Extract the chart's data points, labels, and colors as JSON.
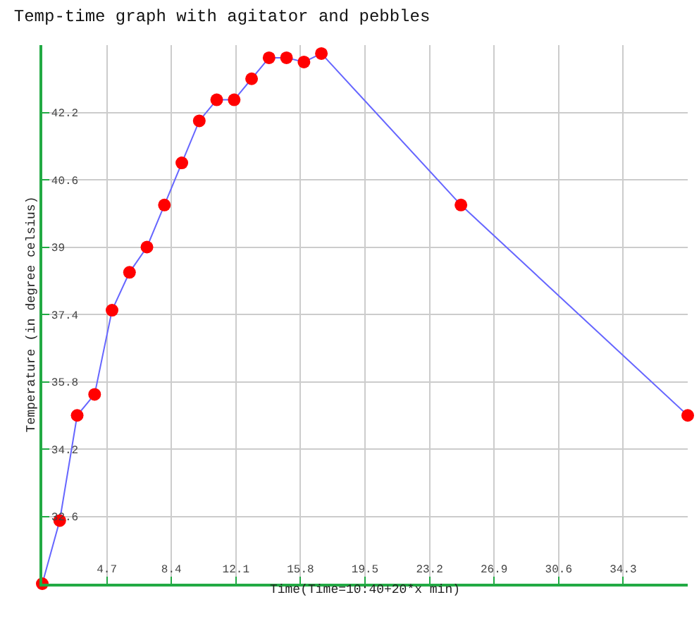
{
  "chart_data": {
    "type": "line",
    "title": "Temp-time graph with agitator and pebbles",
    "xlabel": "Time(Time=10:40+20*x min)",
    "ylabel": "Temperature (in degree celsius)",
    "x": [
      1,
      2,
      3,
      4,
      5,
      6,
      7,
      8,
      9,
      10,
      11,
      12,
      13,
      14,
      15,
      16,
      17,
      25,
      38
    ],
    "series": [
      {
        "color": "#6666ff",
        "values": [
          31.0,
          32.5,
          35.0,
          35.5,
          37.5,
          38.4,
          39.0,
          40.0,
          41.0,
          42.0,
          42.5,
          42.5,
          43.0,
          43.5,
          43.5,
          43.4,
          43.6,
          40.0,
          35.0
        ]
      }
    ],
    "marker": "circle",
    "xlim": [
      1,
      38
    ],
    "ylim": [
      31,
      43.8
    ],
    "xticks": [
      4.7,
      8.4,
      12.1,
      15.8,
      19.5,
      23.2,
      26.9,
      30.6,
      34.3
    ],
    "yticks": [
      32.6,
      34.2,
      35.8,
      37.4,
      39,
      40.6,
      42.2
    ],
    "grid": true,
    "legend": false
  }
}
